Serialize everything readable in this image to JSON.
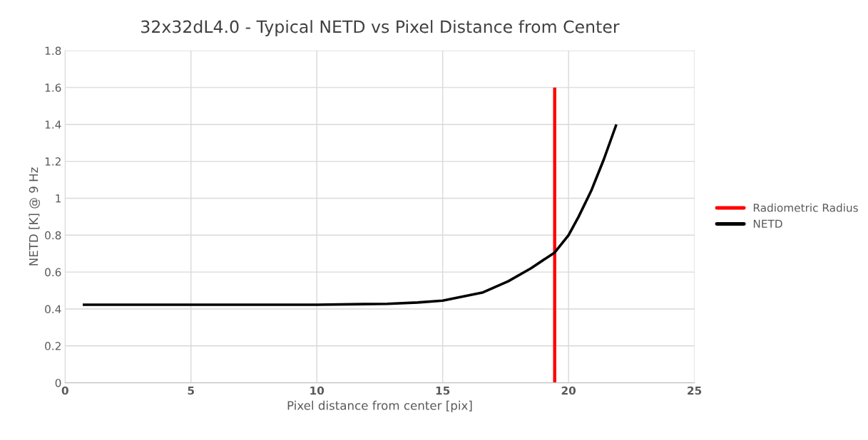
{
  "chart_data": {
    "type": "line",
    "title": "32x32dL4.0 - Typical NETD vs Pixel Distance from Center",
    "xlabel": "Pixel distance from center [pix]",
    "ylabel": "NETD [K] @ 9 Hz",
    "xlim": [
      0,
      25
    ],
    "xticks": [
      0,
      5,
      10,
      15,
      20,
      25
    ],
    "ylim": [
      0,
      1.8
    ],
    "yticks": [
      0,
      0.2,
      0.4,
      0.6,
      0.8,
      1,
      1.2,
      1.4,
      1.6,
      1.8
    ],
    "grid": true,
    "legend": "right",
    "marker": "none",
    "line_style": "solid",
    "series": [
      {
        "name": "Radiometric Radius",
        "color": "#ff0000",
        "x": [
          19.45,
          19.45
        ],
        "values": [
          0,
          1.6
        ]
      },
      {
        "name": "NETD",
        "color": "#000000",
        "x": [
          0.7,
          5,
          10,
          12.8,
          14,
          15,
          16.6,
          17.6,
          18.5,
          19.45,
          20,
          20.4,
          20.9,
          21.4,
          21.9
        ],
        "values": [
          0.423,
          0.423,
          0.423,
          0.428,
          0.435,
          0.445,
          0.49,
          0.55,
          0.62,
          0.706,
          0.8,
          0.9,
          1.04,
          1.21,
          1.4
        ]
      }
    ]
  }
}
